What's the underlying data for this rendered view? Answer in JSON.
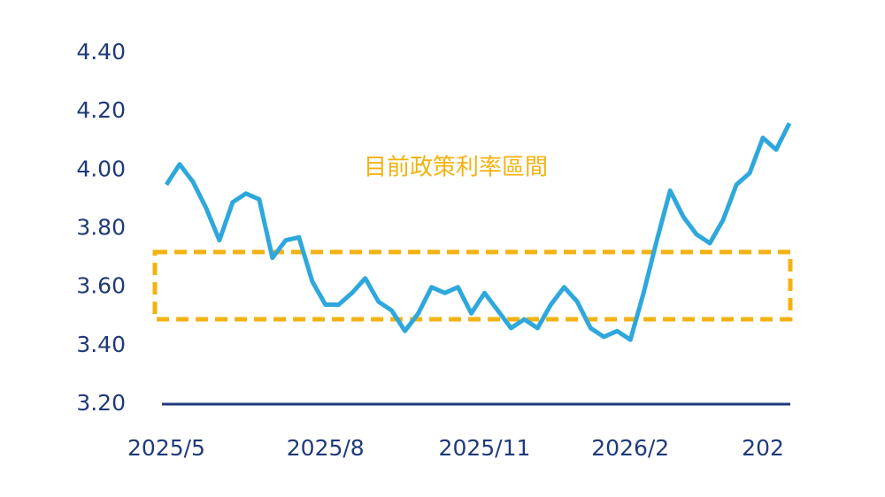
{
  "chart_data": {
    "type": "line",
    "categories": [
      "2025/5",
      null,
      null,
      null,
      null,
      null,
      null,
      null,
      null,
      null,
      null,
      null,
      "2025/8",
      null,
      null,
      null,
      null,
      null,
      null,
      null,
      null,
      null,
      null,
      null,
      "2025/11",
      null,
      null,
      null,
      null,
      null,
      null,
      null,
      null,
      null,
      null,
      "2026/2",
      null,
      null,
      null,
      null,
      null,
      null,
      null,
      null,
      null,
      "202",
      null,
      null
    ],
    "series": [
      {
        "color": "#2ea8dc",
        "values": [
          3.95,
          4.02,
          3.96,
          3.87,
          3.76,
          3.89,
          3.92,
          3.9,
          3.7,
          3.76,
          3.77,
          3.62,
          3.54,
          3.54,
          3.58,
          3.63,
          3.55,
          3.52,
          3.45,
          3.51,
          3.6,
          3.58,
          3.6,
          3.51,
          3.58,
          3.52,
          3.46,
          3.49,
          3.46,
          3.54,
          3.6,
          3.55,
          3.46,
          3.43,
          3.45,
          3.42,
          3.58,
          3.76,
          3.93,
          3.84,
          3.78,
          3.75,
          3.83,
          3.95,
          3.99,
          4.11,
          4.07,
          4.16
        ]
      }
    ],
    "ylim": [
      3.2,
      4.4
    ],
    "yticks": [
      {
        "value": 3.2,
        "label": "3.20"
      },
      {
        "value": 3.4,
        "label": "3.40"
      },
      {
        "value": 3.6,
        "label": "3.60"
      },
      {
        "value": 3.8,
        "label": "3.80"
      },
      {
        "value": 4.0,
        "label": "4.00"
      },
      {
        "value": 4.2,
        "label": "4.20"
      },
      {
        "value": 4.4,
        "label": "4.40"
      }
    ],
    "band": {
      "label": "目前政策利率區間",
      "range": [
        3.49,
        3.72
      ],
      "color": "#f2b212"
    },
    "grid": false
  }
}
